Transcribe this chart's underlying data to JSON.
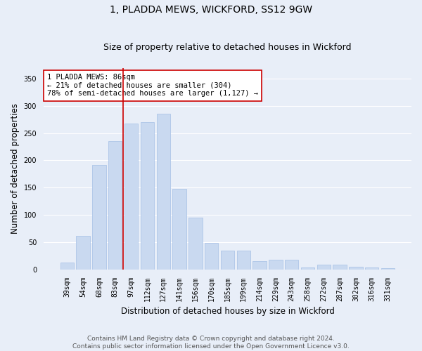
{
  "title": "1, PLADDA MEWS, WICKFORD, SS12 9GW",
  "subtitle": "Size of property relative to detached houses in Wickford",
  "xlabel": "Distribution of detached houses by size in Wickford",
  "ylabel": "Number of detached properties",
  "categories": [
    "39sqm",
    "54sqm",
    "68sqm",
    "83sqm",
    "97sqm",
    "112sqm",
    "127sqm",
    "141sqm",
    "156sqm",
    "170sqm",
    "185sqm",
    "199sqm",
    "214sqm",
    "229sqm",
    "243sqm",
    "258sqm",
    "272sqm",
    "287sqm",
    "302sqm",
    "316sqm",
    "331sqm"
  ],
  "values": [
    12,
    62,
    192,
    236,
    268,
    270,
    285,
    148,
    95,
    48,
    35,
    35,
    15,
    17,
    18,
    4,
    9,
    8,
    5,
    4,
    2
  ],
  "bar_color": "#c9d9f0",
  "bar_edge_color": "#aec6e8",
  "vline_x": 3.5,
  "vline_color": "#cc0000",
  "annotation_text": "1 PLADDA MEWS: 86sqm\n← 21% of detached houses are smaller (304)\n78% of semi-detached houses are larger (1,127) →",
  "annotation_box_color": "#ffffff",
  "annotation_box_edge_color": "#cc0000",
  "ylim": [
    0,
    370
  ],
  "yticks": [
    0,
    50,
    100,
    150,
    200,
    250,
    300,
    350
  ],
  "bg_color": "#e8eef8",
  "plot_bg_color": "#e8eef8",
  "grid_color": "#ffffff",
  "footer": "Contains HM Land Registry data © Crown copyright and database right 2024.\nContains public sector information licensed under the Open Government Licence v3.0.",
  "title_fontsize": 10,
  "subtitle_fontsize": 9,
  "axis_label_fontsize": 8.5,
  "tick_fontsize": 7,
  "annotation_fontsize": 7.5,
  "footer_fontsize": 6.5
}
